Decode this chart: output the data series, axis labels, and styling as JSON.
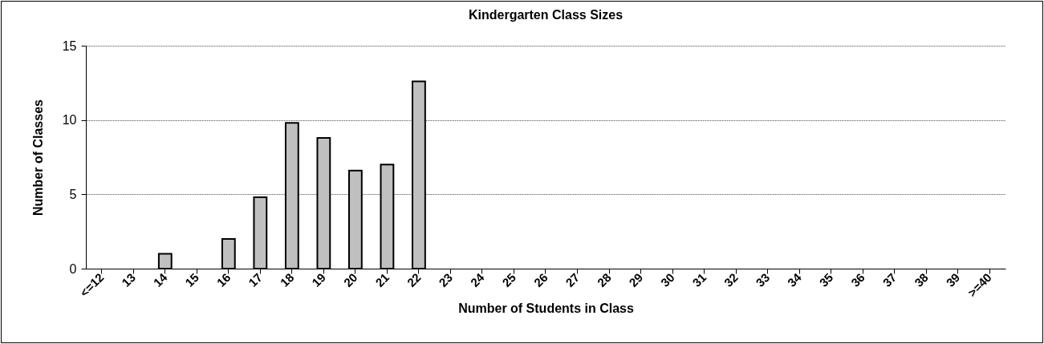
{
  "chart_data": {
    "type": "bar",
    "title": "Kindergarten Class Sizes",
    "xlabel": "Number of Students in Class",
    "ylabel": "Number of Classes",
    "categories": [
      "<=12",
      "13",
      "14",
      "15",
      "16",
      "17",
      "18",
      "19",
      "20",
      "21",
      "22",
      "23",
      "24",
      "25",
      "26",
      "27",
      "28",
      "29",
      "30",
      "31",
      "32",
      "33",
      "34",
      "35",
      "36",
      "37",
      "38",
      "39",
      ">=40"
    ],
    "values": [
      0,
      0,
      1,
      0,
      2,
      4.8,
      9.8,
      8.8,
      6.6,
      7.0,
      12.6,
      0,
      0,
      0,
      0,
      0,
      0,
      0,
      0,
      0,
      0,
      0,
      0,
      0,
      0,
      0,
      0,
      0,
      0
    ],
    "color": "#c0c0c0",
    "ylim": [
      0,
      15
    ],
    "yticks": [
      0,
      5,
      10,
      15
    ],
    "grid": "y"
  }
}
